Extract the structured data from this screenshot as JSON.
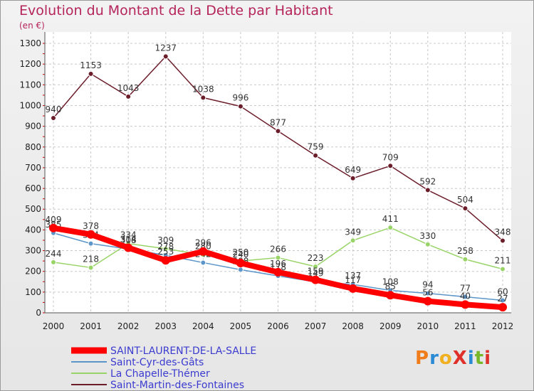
{
  "title": "Evolution du Montant de la Dette par Habitant",
  "unit": "(en €)",
  "logo": {
    "text": "ProXiti",
    "letter_colors": [
      "#f07c1a",
      "#2a8ad4",
      "#f0b020",
      "#e0302a",
      "#2a8ad4",
      "#76b82a",
      "#e0302a"
    ]
  },
  "chart_data": {
    "type": "line",
    "x": [
      "2000",
      "2001",
      "2002",
      "2003",
      "2004",
      "2005",
      "2006",
      "2007",
      "2008",
      "2009",
      "2010",
      "2011",
      "2012"
    ],
    "ylim": [
      0,
      1300
    ],
    "yticks": [
      0,
      100,
      200,
      300,
      400,
      500,
      600,
      700,
      800,
      900,
      1000,
      1100,
      1200,
      1300
    ],
    "grid": true,
    "legend": "bottom-left",
    "series": [
      {
        "name": "SAINT-LAURENT-DE-LA-SALLE",
        "color": "#ff0000",
        "values": [
          409,
          378,
          314,
          253,
          296,
          240,
          196,
          159,
          117,
          85,
          56,
          40,
          27
        ]
      },
      {
        "name": "Saint-Cyr-des-Gâts",
        "color": "#5b95c9",
        "values": [
          385,
          334,
          308,
          278,
          242,
          208,
          178,
          149,
          137,
          108,
          94,
          77,
          60
        ]
      },
      {
        "name": "La Chapelle-Thémer",
        "color": "#99d468",
        "values": [
          244,
          218,
          334,
          309,
          280,
          250,
          266,
          223,
          349,
          411,
          330,
          258,
          211
        ]
      },
      {
        "name": "Saint-Martin-des-Fontaines",
        "color": "#6b1d2a",
        "values": [
          940,
          1153,
          1043,
          1237,
          1038,
          996,
          877,
          759,
          649,
          709,
          592,
          504,
          348
        ]
      }
    ]
  }
}
